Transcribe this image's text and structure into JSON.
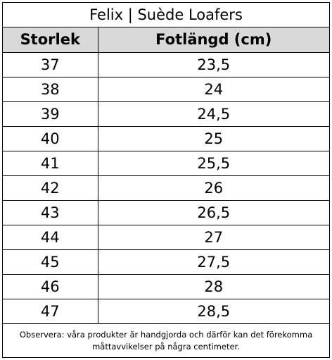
{
  "title": "Felix | Suède Loafers",
  "columns": [
    "Storlek",
    "Fotlängd (cm)"
  ],
  "rows": [
    [
      "37",
      "23,5"
    ],
    [
      "38",
      "24"
    ],
    [
      "39",
      "24,5"
    ],
    [
      "40",
      "25"
    ],
    [
      "41",
      "25,5"
    ],
    [
      "42",
      "26"
    ],
    [
      "43",
      "26,5"
    ],
    [
      "44",
      "27"
    ],
    [
      "45",
      "27,5"
    ],
    [
      "46",
      "28"
    ],
    [
      "47",
      "28,5"
    ]
  ],
  "note": "Observera: våra produkter är handgjorda och därför kan det förekomma\nmåttavvikelser på några centimeter.",
  "colors": {
    "header_bg": "#d9d9d9",
    "border": "#000000"
  }
}
